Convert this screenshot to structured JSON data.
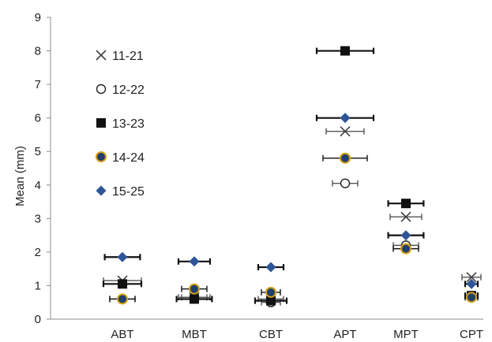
{
  "chart_data": {
    "type": "scatter",
    "title": "",
    "xlabel": "",
    "ylabel": "Mean (mm)",
    "ylim": [
      0,
      9
    ],
    "yticks": [
      0,
      1,
      2,
      3,
      4,
      5,
      6,
      7,
      8,
      9
    ],
    "categories": [
      "ABT",
      "MBT",
      "CBT",
      "APT",
      "MPT",
      "CPT"
    ],
    "grid": false,
    "legend_position": "top-left",
    "series": [
      {
        "name": "11-21",
        "marker": "x",
        "color": "#404040",
        "values": [
          1.15,
          0.65,
          0.6,
          5.6,
          3.05,
          1.25
        ],
        "xerr": [
          0.3,
          0.25,
          0.2,
          0.3,
          0.25,
          0.15
        ]
      },
      {
        "name": "12-22",
        "marker": "open-circle",
        "color": "#222222",
        "values": [
          0.6,
          0.65,
          0.5,
          4.05,
          2.2,
          0.7
        ],
        "xerr": [
          0.2,
          0.2,
          0.15,
          0.2,
          0.2,
          0.1
        ]
      },
      {
        "name": "13-23",
        "marker": "filled-square",
        "color": "#111111",
        "values": [
          1.05,
          0.6,
          0.55,
          8.0,
          3.45,
          0.7
        ],
        "xerr": [
          0.3,
          0.28,
          0.25,
          0.45,
          0.28,
          0.1
        ]
      },
      {
        "name": "14-24",
        "marker": "gold-circle",
        "color": "#1f3f6f",
        "edge": "#d4a017",
        "values": [
          0.6,
          0.9,
          0.8,
          4.8,
          2.1,
          0.65
        ],
        "xerr": [
          0.2,
          0.2,
          0.15,
          0.35,
          0.2,
          0.1
        ]
      },
      {
        "name": "15-25",
        "marker": "diamond",
        "color": "#2e5597",
        "values": [
          1.85,
          1.72,
          1.55,
          6.0,
          2.5,
          1.05
        ],
        "xerr": [
          0.28,
          0.25,
          0.2,
          0.45,
          0.28,
          0.1
        ]
      }
    ]
  }
}
